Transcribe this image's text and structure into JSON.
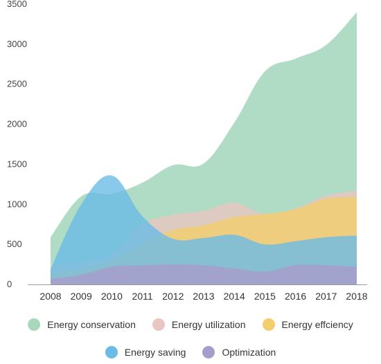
{
  "chart_data": {
    "type": "area",
    "title": "",
    "xlabel": "",
    "ylabel": "",
    "categories": [
      "2008",
      "2009",
      "2010",
      "2011",
      "2012",
      "2013",
      "2014",
      "2015",
      "2016",
      "2017",
      "2018"
    ],
    "y_ticks": [
      "0",
      "500",
      "1000",
      "1500",
      "2000",
      "2500",
      "3000",
      "3500"
    ],
    "ylim": [
      0,
      3500
    ],
    "grid": false,
    "legend_position": "bottom",
    "series": [
      {
        "name": "Energy conservation",
        "color": "#a9d8bf",
        "values": [
          590,
          1100,
          1130,
          1270,
          1490,
          1510,
          2020,
          2660,
          2820,
          2990,
          3400
        ]
      },
      {
        "name": "Energy utilization",
        "color": "#e8c6c1",
        "values": [
          220,
          280,
          380,
          750,
          870,
          920,
          1020,
          880,
          950,
          1110,
          1170
        ]
      },
      {
        "name": "Energy effciency",
        "color": "#f3cd6e",
        "values": [
          130,
          200,
          300,
          520,
          680,
          740,
          840,
          880,
          940,
          1070,
          1090
        ]
      },
      {
        "name": "Energy saving",
        "color": "#6bbbe6",
        "values": [
          190,
          1000,
          1360,
          850,
          570,
          580,
          620,
          500,
          540,
          590,
          610
        ]
      },
      {
        "name": "Optimization",
        "color": "#a79ccc",
        "values": [
          70,
          120,
          220,
          240,
          250,
          240,
          200,
          160,
          240,
          240,
          220
        ]
      }
    ]
  }
}
